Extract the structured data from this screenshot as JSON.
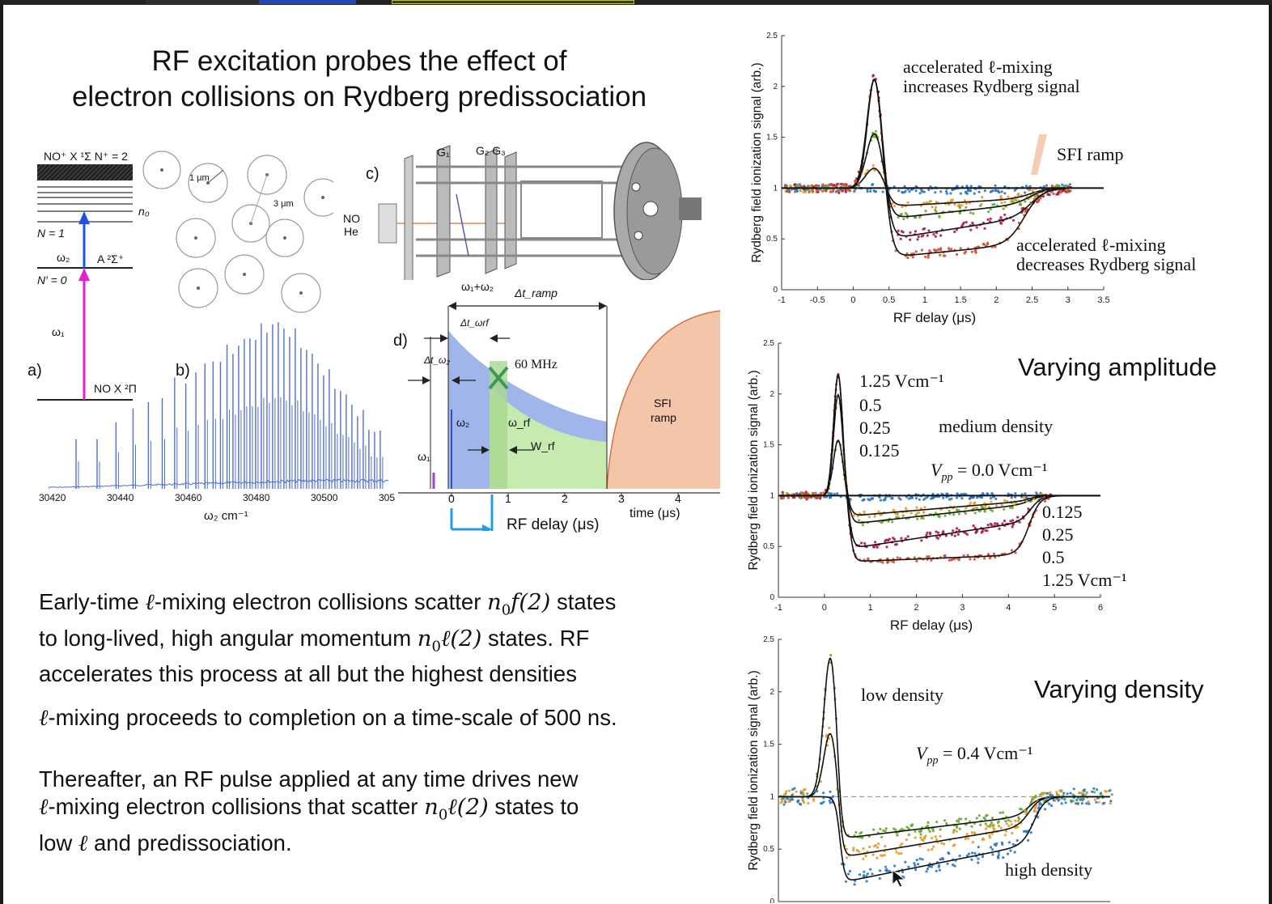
{
  "slide": {
    "title_line1": "RF excitation probes the effect of",
    "title_line2": "electron collisions on Rydberg predissociation",
    "para1_l1_a": "Early-time ",
    "para1_l1_b": "-mixing electron collisions scatter ",
    "para1_l1_c": " states",
    "para1_l2_a": "to long-lived, high angular momentum ",
    "para1_l2_b": " states.  RF",
    "para1_l3": "accelerates this process at all but the highest densities",
    "para2_b": "-mixing proceeds to completion on a time-scale of 500 ns.",
    "para3_l1": "Thereafter, an RF pulse applied at any time drives new",
    "para3_l2_b": "-mixing electron collisions that scatter ",
    "para3_l2_c": " states to",
    "para3_l3_a": "low ",
    "para3_l3_b": " and predissociation.",
    "ell": "ℓ",
    "n0f2_n": "n",
    "n0f2_sub": "0",
    "n0f2_rest": "f(2)",
    "n0l2_rest": "ℓ(2)"
  },
  "panel_a": {
    "label": "a)",
    "top_level": "NO⁺ X ¹Σ N⁺ = 2",
    "n0": "n₀",
    "N1": "N = 1",
    "omega2": "ω₂",
    "A_state": "A ²Σ⁺",
    "Nprime0": "N′ = 0",
    "omega1": "ω₁",
    "ground": "NO  X ²Π"
  },
  "panel_b": {
    "label": "b)",
    "scale1": "1 μm",
    "scale2": "3 μm",
    "axis_ticks": [
      "30420",
      "30440",
      "30460",
      "30480",
      "30500",
      "305"
    ],
    "xlabel": "ω₂ cm⁻¹"
  },
  "panel_c": {
    "label": "c)",
    "g1": "G₁",
    "g2g3": "G₂ G₃",
    "no": "NO",
    "he": "He",
    "w1w2": "ω₁+ω₂"
  },
  "panel_d": {
    "label": "d)",
    "dt_ramp": "Δt_ramp",
    "dt_wrf": "Δt_ωrf",
    "dt_w2": "Δt_ω₂",
    "mhz": "60 MHz",
    "w2": "ω₂",
    "wrf": "ω_rf",
    "Wrf": "W_rf",
    "w1": "ω₁",
    "sfi_1": "SFI",
    "sfi_2": "ramp",
    "ticks": [
      "0",
      "1",
      "2",
      "3",
      "4"
    ],
    "time_label": "time (μs)",
    "rf_delay": "RF delay (μs)"
  },
  "plot1": {
    "ylabel": "Rydberg field ionization signal (arb.)",
    "xlabel": "RF delay (μs)",
    "yticks": [
      "0",
      "0.5",
      "1",
      "1.5",
      "2",
      "2.5"
    ],
    "xticks": [
      "-1",
      "-0.5",
      "0",
      "0.5",
      "1",
      "1.5",
      "2",
      "2.5",
      "3",
      "3.5"
    ],
    "ann1_l1": "accelerated ℓ-mixing",
    "ann1_l2": "increases Rydberg signal",
    "ann2": "SFI ramp",
    "ann3_l1": "accelerated ℓ-mixing",
    "ann3_l2": "decreases Rydberg signal"
  },
  "plot2": {
    "ylabel": "Rydberg field ionization signal (arb.)",
    "xlabel": "RF delay (μs)",
    "yticks": [
      "0",
      "0.5",
      "1",
      "1.5",
      "2",
      "2.5"
    ],
    "xticks": [
      "-1",
      "0",
      "1",
      "2",
      "3",
      "4",
      "5",
      "6"
    ],
    "title": "Varying amplitude",
    "amp_top": [
      "1.25 Vcm⁻¹",
      "0.5",
      "0.25",
      "0.125"
    ],
    "density": "medium density",
    "vpp": "V",
    "vpp_sub": "pp",
    "vpp_val": " = 0.0 Vcm⁻¹",
    "amp_bottom": [
      "0.125",
      "0.25",
      "0.5",
      "1.25 Vcm⁻¹"
    ]
  },
  "plot3": {
    "ylabel": "Rydberg field ionization signal (arb.)",
    "yticks": [
      "0",
      "0.5",
      "1",
      "1.5",
      "2",
      "2.5"
    ],
    "title": "Varying density",
    "low": "low density",
    "vpp": "V",
    "vpp_sub": "pp",
    "vpp_val": " = 0.4 Vcm⁻¹",
    "high": "high density"
  },
  "colors": {
    "blue_spectrum": "#4f6fd0",
    "pink_arrow": "#e020c8",
    "blue_arrow": "#2050e0",
    "rf_bracket": "#1e9bea",
    "green_fill": "#cbf0a8",
    "blue_fill": "#8fa8e6",
    "sfi_fill": "#f3c0a0",
    "dot_blue": "#2a78c8",
    "dot_orange": "#e89a2a",
    "dot_green": "#6aaa30",
    "dot_red": "#b01840",
    "dot_orange_red": "#d2502a"
  }
}
